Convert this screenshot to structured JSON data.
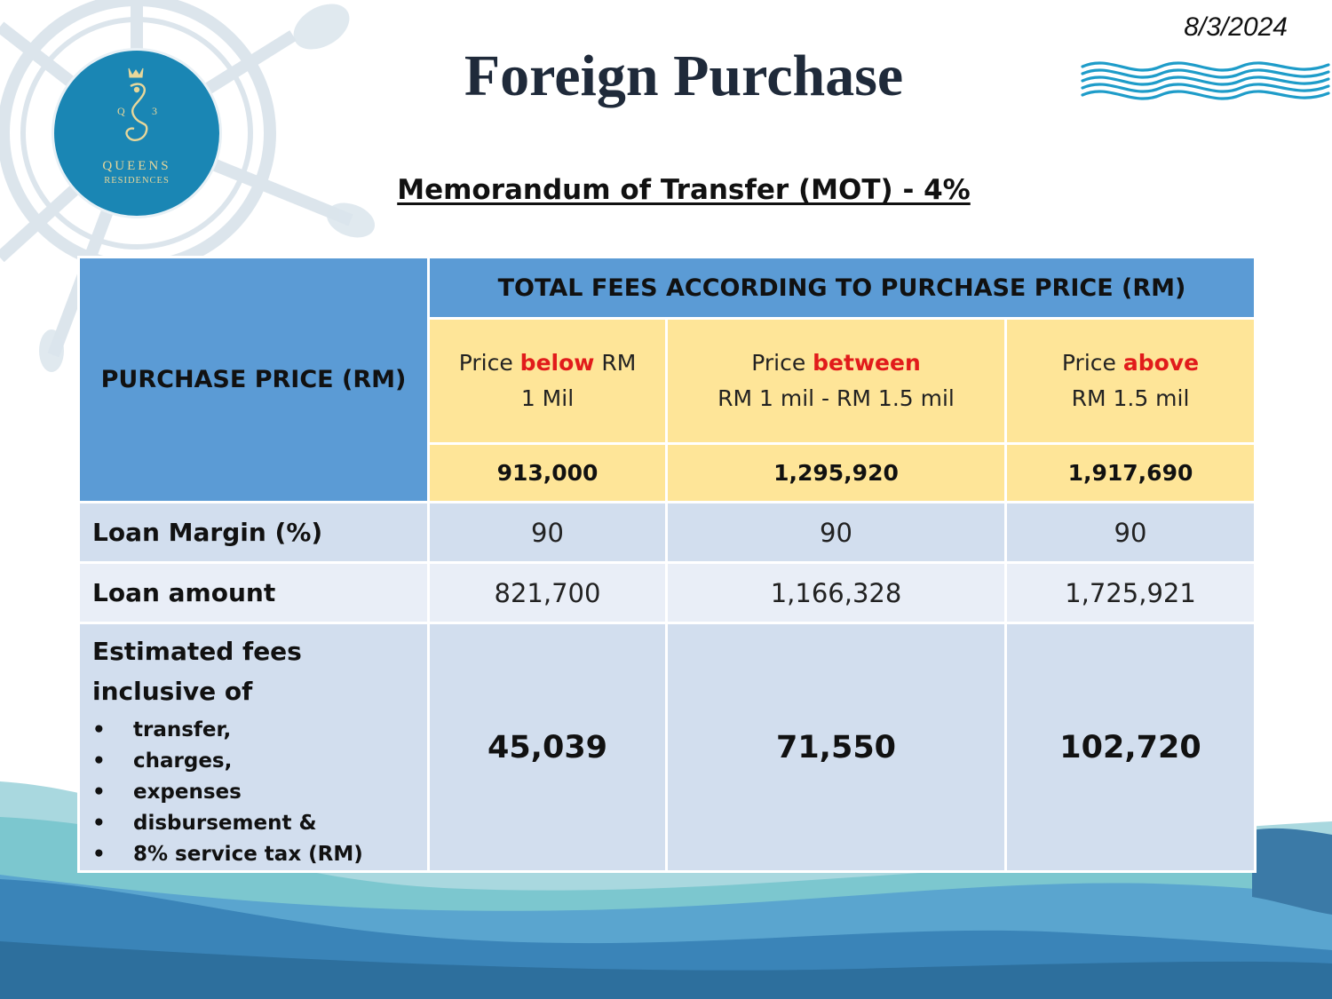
{
  "header": {
    "date": "8/3/2024",
    "title": "Foreign Purchase",
    "subtitle": "Memorandum of Transfer (MOT) - 4%"
  },
  "logo": {
    "name": "QUEENS",
    "sub": "RESIDENCES",
    "q": "Q",
    "n": "3"
  },
  "colors": {
    "logo_blue": "#1a86b4",
    "header_blue": "#5b9bd5",
    "header_yellow": "#fee598",
    "row_dark": "#d2deee",
    "row_light": "#e9eef7",
    "highlight_red": "#e11b1b"
  },
  "table": {
    "purchase_price_header": "PURCHASE PRICE (RM)",
    "total_fees_header": "TOTAL FEES ACCORDING TO PURCHASE PRICE (RM)",
    "categories": [
      {
        "prefix": "Price ",
        "keyword": "below",
        "suffix1": " RM",
        "line2": "1 Mil",
        "value": "913,000"
      },
      {
        "prefix": "Price ",
        "keyword": "between",
        "suffix1": "",
        "line2": "RM 1 mil - RM 1.5 mil",
        "value": "1,295,920"
      },
      {
        "prefix": "Price ",
        "keyword": "above",
        "suffix1": "",
        "line2": "RM 1.5 mil",
        "value": "1,917,690"
      }
    ],
    "rows": {
      "loan_margin": {
        "label": "Loan Margin (%)",
        "values": [
          "90",
          "90",
          "90"
        ]
      },
      "loan_amount": {
        "label": "Loan amount",
        "values": [
          "821,700",
          "1,166,328",
          "1,725,921"
        ]
      },
      "estimated_fees": {
        "label_line1": "Estimated fees",
        "label_line2": "inclusive of",
        "bullet_char": "•",
        "bullets": [
          "transfer,",
          "charges,",
          "expenses",
          "disbursement &",
          "8% service tax (RM)"
        ],
        "values": [
          "45,039",
          "71,550",
          "102,720"
        ]
      }
    }
  }
}
